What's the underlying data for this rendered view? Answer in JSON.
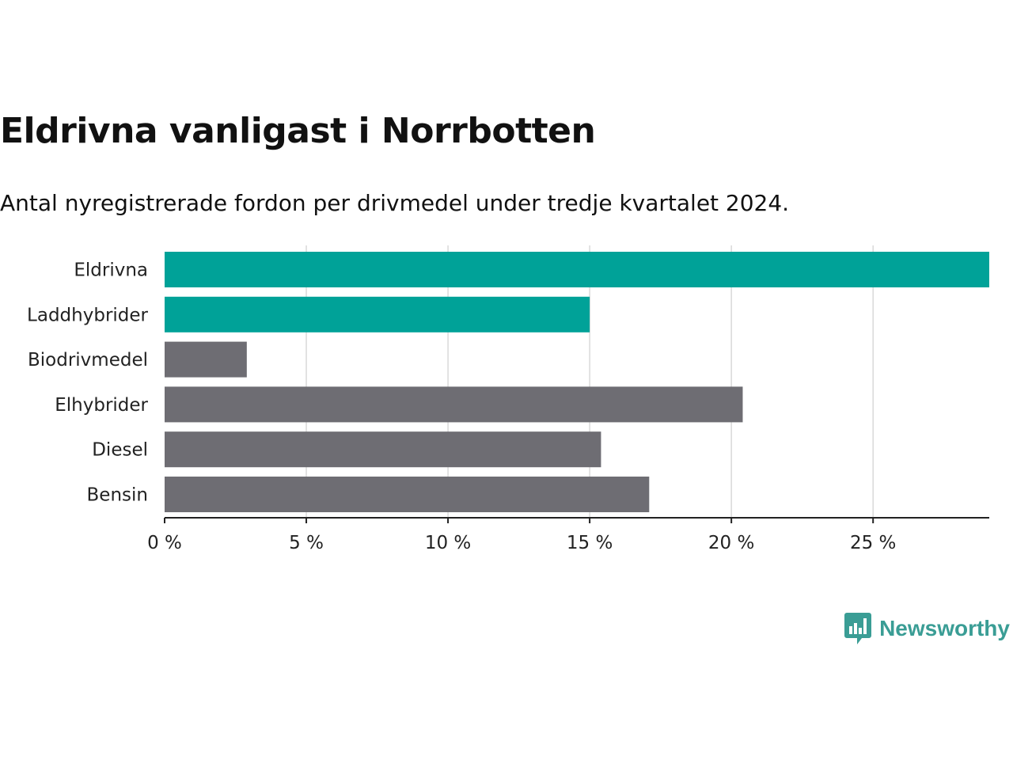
{
  "colors": {
    "highlight": "#00a298",
    "neutral": "#6e6d73",
    "grid": "#d9d9d9",
    "axis": "#222222",
    "brand": "#3a9d95"
  },
  "brand": {
    "name": "Newsworthy",
    "icon": "bar-chart-speech-bubble-icon"
  },
  "chart_data": {
    "type": "bar",
    "orientation": "horizontal",
    "title": "Eldrivna vanligast i Norrbotten",
    "subtitle": "Antal nyregistrerade fordon per drivmedel under tredje kvartalet 2024.",
    "categories": [
      "Eldrivna",
      "Laddhybrider",
      "Biodrivmedel",
      "Elhybrider",
      "Diesel",
      "Bensin"
    ],
    "values": [
      29.1,
      15.0,
      2.9,
      20.4,
      15.4,
      17.1
    ],
    "highlighted": [
      true,
      true,
      false,
      false,
      false,
      false
    ],
    "xlabel": "",
    "ylabel": "",
    "xlim": [
      0,
      29.1
    ],
    "xticks": [
      0,
      5,
      10,
      15,
      20,
      25
    ],
    "xtick_labels": [
      "0 %",
      "5 %",
      "10 %",
      "15 %",
      "20 %",
      "25 %"
    ],
    "grid": true,
    "legend": "none"
  }
}
